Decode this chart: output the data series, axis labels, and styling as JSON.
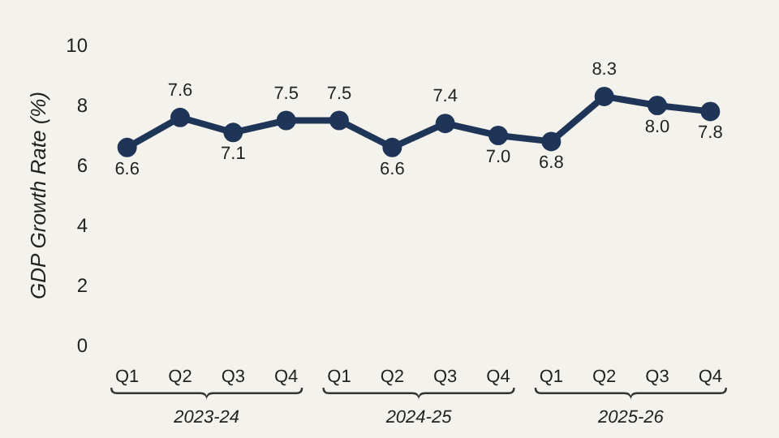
{
  "chart_data": {
    "type": "line",
    "ylabel": "GDP Growth Rate (%)",
    "categories": [
      "Q1",
      "Q2",
      "Q3",
      "Q4",
      "Q1",
      "Q2",
      "Q3",
      "Q4",
      "Q1",
      "Q2",
      "Q3",
      "Q4"
    ],
    "series": [
      {
        "color": "#1f3557",
        "values": [
          6.6,
          7.6,
          7.1,
          7.5,
          7.5,
          6.6,
          7.4,
          7.0,
          6.8,
          8.3,
          8.0,
          7.8
        ],
        "value_labels": [
          "6.6",
          "7.6",
          "7.1",
          "7.5",
          "7.5",
          "6.6",
          "7.4",
          "7.0",
          "6.8",
          "8.3",
          "8.0",
          "7.8"
        ]
      }
    ],
    "ylim": [
      0,
      10
    ],
    "yticks": [
      0,
      2,
      4,
      6,
      8,
      10
    ],
    "grid": false,
    "marker": "circle",
    "line_style": "solid",
    "annotations": [
      "2023-24",
      "2024-25",
      "2025-26"
    ]
  }
}
